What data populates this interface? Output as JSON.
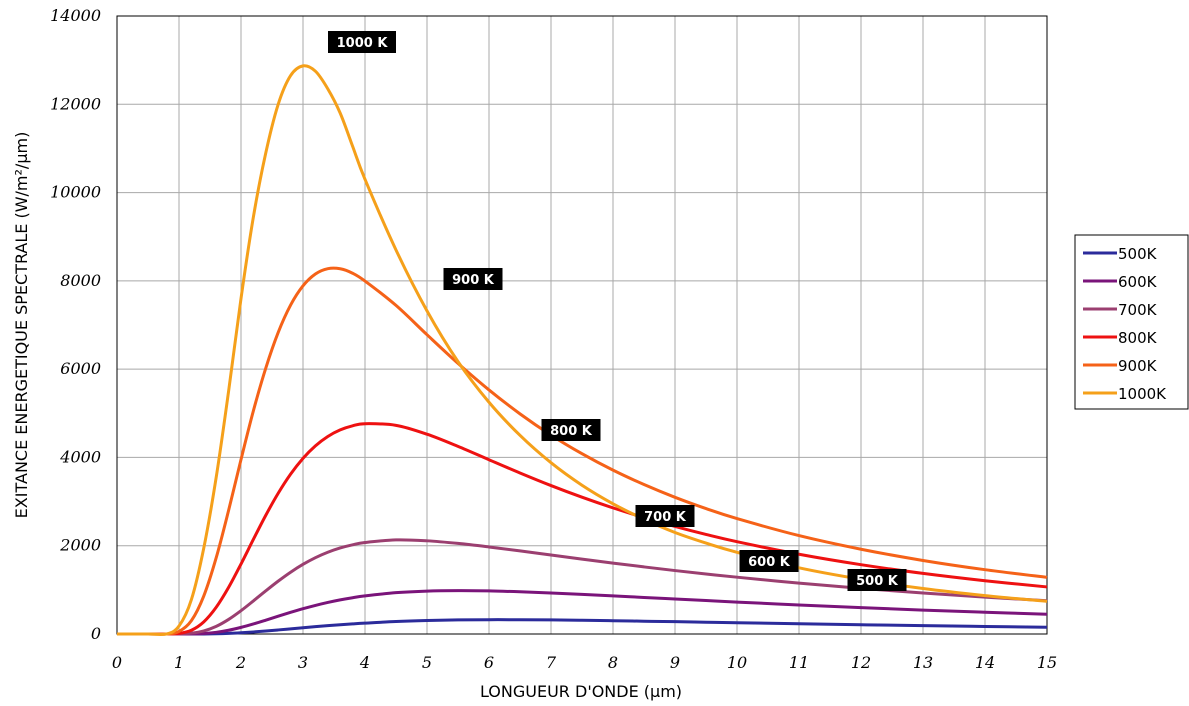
{
  "chart_data": {
    "type": "line",
    "title": "",
    "xlabel": "LONGUEUR D'ONDE (µm)",
    "ylabel": "EXITANCE ENERGETIQUE SPECTRALE (W/m²/µm)",
    "xlim": [
      0,
      15
    ],
    "ylim": [
      0,
      14000
    ],
    "x_ticks": [
      "0",
      "1",
      "2",
      "3",
      "4",
      "5",
      "6",
      "7",
      "8",
      "9",
      "10",
      "11",
      "12",
      "13",
      "14",
      "15"
    ],
    "y_ticks": [
      "0",
      "2000",
      "4000",
      "6000",
      "8000",
      "10000",
      "12000",
      "14000"
    ],
    "grid": true,
    "legend_position": "right",
    "x": [
      0.5,
      0.8,
      1,
      1.2,
      1.4,
      1.6,
      1.8,
      2,
      2.2,
      2.4,
      2.6,
      2.8,
      3,
      3.2,
      3.4,
      3.6,
      3.8,
      4,
      4.5,
      5,
      5.5,
      6,
      6.5,
      7,
      7.5,
      8,
      8.5,
      9,
      9.5,
      10,
      11,
      12,
      13,
      14,
      15
    ],
    "series": [
      {
        "name": "500K",
        "color": "#2b2b9b",
        "values": [
          0,
          0,
          0,
          0.2,
          1.4,
          5.4,
          14,
          28,
          46,
          68,
          92,
          117,
          142,
          166,
          189,
          210,
          229,
          246,
          283,
          306,
          319,
          324,
          323,
          319,
          311,
          301,
          290,
          279,
          267,
          255,
          232,
          210,
          189,
          171,
          154
        ]
      },
      {
        "name": "600K",
        "color": "#7a147a",
        "values": [
          0,
          0,
          0.1,
          2.4,
          12,
          38,
          85,
          150,
          228,
          314,
          403,
          490,
          573,
          648,
          715,
          773,
          822,
          863,
          936,
          972,
          982,
          976,
          956,
          929,
          898,
          864,
          828,
          793,
          758,
          723,
          658,
          598,
          542,
          493,
          447
        ]
      },
      {
        "name": "700K",
        "color": "#9b3f70",
        "values": [
          0,
          0,
          3,
          19,
          70,
          173,
          330,
          528,
          750,
          978,
          1198,
          1400,
          1578,
          1729,
          1852,
          1949,
          2021,
          2072,
          2132,
          2111,
          2052,
          1972,
          1883,
          1789,
          1697,
          1606,
          1520,
          1437,
          1360,
          1287,
          1153,
          1034,
          929,
          836,
          754
        ]
      },
      {
        "name": "800K",
        "color": "#ee1111",
        "values": [
          0,
          0,
          14,
          85,
          275,
          605,
          1055,
          1585,
          2144,
          2690,
          3188,
          3621,
          3979,
          4262,
          4475,
          4624,
          4717,
          4764,
          4727,
          4526,
          4250,
          3948,
          3648,
          3363,
          3099,
          2857,
          2636,
          2436,
          2255,
          2091,
          1806,
          1570,
          1373,
          1207,
          1066
        ]
      },
      {
        "name": "900K",
        "color": "#f56218",
        "values": [
          0,
          0,
          58,
          303,
          863,
          1728,
          2800,
          3952,
          5057,
          6025,
          6831,
          7451,
          7887,
          8155,
          8276,
          8274,
          8173,
          7996,
          7444,
          6780,
          6131,
          5529,
          4987,
          4506,
          4084,
          3712,
          3386,
          3097,
          2841,
          2614,
          2229,
          1920,
          1666,
          1457,
          1284
        ]
      },
      {
        "name": "1000K",
        "color": "#f5a01a",
        "values": [
          0,
          2,
          180,
          780,
          1950,
          3550,
          5500,
          7600,
          9450,
          10900,
          12000,
          12650,
          12870,
          12750,
          12350,
          11800,
          11050,
          10300,
          8700,
          7320,
          6170,
          5250,
          4500,
          3880,
          3370,
          2950,
          2600,
          2300,
          2060,
          1850,
          1500,
          1240,
          1030,
          870,
          740
        ]
      }
    ],
    "annotations": [
      "1000 K",
      "900 K",
      "800 K",
      "700 K",
      "600 K",
      "500 K"
    ]
  }
}
